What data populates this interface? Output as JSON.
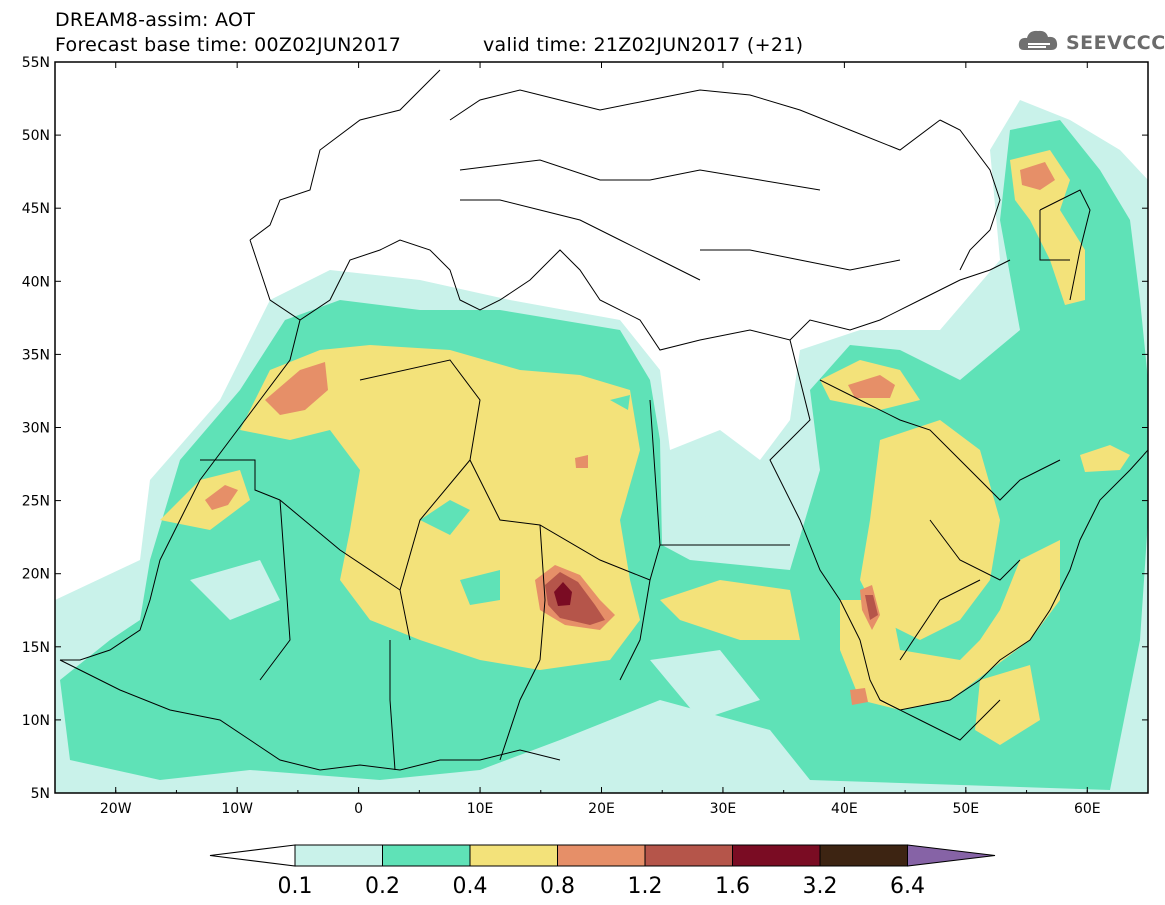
{
  "header": {
    "title": "DREAM8-assim: AOT",
    "base_time": "Forecast base time: 00Z02JUN2017",
    "valid_time": "valid time: 21Z02JUN2017 (+21)"
  },
  "logo": {
    "text": "SEEVCCC",
    "icon": "cloud-icon"
  },
  "map": {
    "lon_range": [
      -25,
      65
    ],
    "lat_range": [
      5,
      55
    ],
    "lat_labels": [
      "5N",
      "10N",
      "15N",
      "20N",
      "25N",
      "30N",
      "35N",
      "40N",
      "45N",
      "50N",
      "55N"
    ],
    "lon_labels": [
      "20W",
      "10W",
      "0",
      "10E",
      "20E",
      "30E",
      "40E",
      "50E",
      "60E"
    ]
  },
  "colorbar": {
    "levels": [
      "0.1",
      "0.2",
      "0.4",
      "0.8",
      "1.2",
      "1.6",
      "3.2",
      "6.4"
    ],
    "colors": [
      "#ffffff",
      "#c9f2ea",
      "#5fe2b7",
      "#f3e27a",
      "#e68f68",
      "#b5554a",
      "#7a0c23",
      "#3d2412",
      "#8663a6"
    ]
  },
  "legend_colors": {
    "c1": "#c9f2ea",
    "c2": "#5fe2b7",
    "c3": "#f3e27a",
    "c4": "#e68f68",
    "c5": "#b5554a",
    "c6": "#7a0c23"
  }
}
